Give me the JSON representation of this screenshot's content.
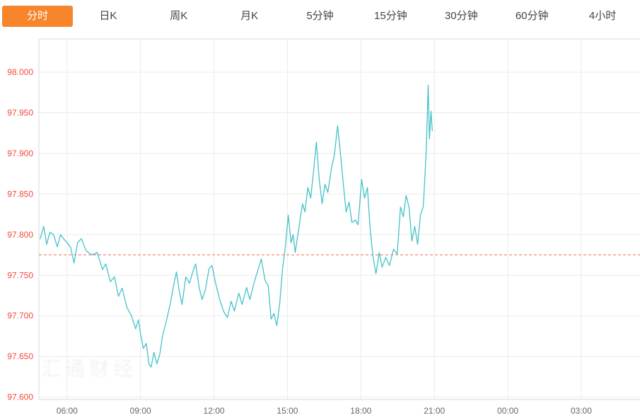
{
  "tabs": [
    {
      "label": "分时",
      "active": true
    },
    {
      "label": "日K",
      "active": false
    },
    {
      "label": "周K",
      "active": false
    },
    {
      "label": "月K",
      "active": false
    },
    {
      "label": "5分钟",
      "active": false
    },
    {
      "label": "15分钟",
      "active": false
    },
    {
      "label": "30分钟",
      "active": false
    },
    {
      "label": "60分钟",
      "active": false
    },
    {
      "label": "4小时",
      "active": false
    }
  ],
  "watermark": "汇通财经",
  "chart_data": {
    "type": "line",
    "title": "",
    "xlabel": "",
    "ylabel": "",
    "legend": "none",
    "grid": true,
    "colors": {
      "line": "#45c2c8",
      "grid": "#ebebeb",
      "border": "#d9d9d9",
      "y_labels": "#f04b3e",
      "x_labels": "#666666",
      "active_tab": "#f7852c"
    },
    "reference_line": {
      "value": 97.775,
      "color": "#f4705c",
      "style": "dashed"
    },
    "y_tick_values": [
      98.0,
      97.95,
      97.9,
      97.85,
      97.8,
      97.75,
      97.7,
      97.65,
      97.6
    ],
    "y_tick_labels": [
      "98.000",
      "97.950",
      "97.900",
      "97.850",
      "97.800",
      "97.750",
      "97.700",
      "97.650",
      "97.600"
    ],
    "x_tick_minutes": [
      0,
      180,
      360,
      540,
      720,
      900,
      1080,
      1260
    ],
    "x_tick_labels": [
      "06:00",
      "09:00",
      "12:00",
      "15:00",
      "18:00",
      "21:00",
      "00:00",
      "03:00"
    ],
    "x_domain_minutes": [
      -69,
      1404
    ],
    "y_domain": [
      97.597,
      98.041
    ],
    "ylim": [
      97.6,
      98.0
    ],
    "series": [
      {
        "name": "price",
        "points": [
          [
            -66,
            97.795
          ],
          [
            -57,
            97.81
          ],
          [
            -50,
            97.788
          ],
          [
            -42,
            97.803
          ],
          [
            -33,
            97.8
          ],
          [
            -24,
            97.785
          ],
          [
            -16,
            97.8
          ],
          [
            -7,
            97.794
          ],
          [
            0,
            97.79
          ],
          [
            9,
            97.784
          ],
          [
            17,
            97.765
          ],
          [
            26,
            97.79
          ],
          [
            35,
            97.795
          ],
          [
            47,
            97.78
          ],
          [
            61,
            97.775
          ],
          [
            74,
            97.778
          ],
          [
            87,
            97.757
          ],
          [
            95,
            97.764
          ],
          [
            106,
            97.742
          ],
          [
            116,
            97.748
          ],
          [
            126,
            97.724
          ],
          [
            135,
            97.734
          ],
          [
            147,
            97.71
          ],
          [
            158,
            97.7
          ],
          [
            168,
            97.684
          ],
          [
            175,
            97.695
          ],
          [
            180,
            97.678
          ],
          [
            187,
            97.66
          ],
          [
            194,
            97.666
          ],
          [
            201,
            97.64
          ],
          [
            206,
            97.637
          ],
          [
            213,
            97.655
          ],
          [
            220,
            97.641
          ],
          [
            227,
            97.652
          ],
          [
            234,
            97.675
          ],
          [
            244,
            97.695
          ],
          [
            253,
            97.715
          ],
          [
            262,
            97.74
          ],
          [
            268,
            97.754
          ],
          [
            275,
            97.73
          ],
          [
            282,
            97.714
          ],
          [
            291,
            97.748
          ],
          [
            300,
            97.74
          ],
          [
            308,
            97.754
          ],
          [
            315,
            97.764
          ],
          [
            324,
            97.734
          ],
          [
            331,
            97.72
          ],
          [
            339,
            97.732
          ],
          [
            348,
            97.758
          ],
          [
            355,
            97.762
          ],
          [
            364,
            97.74
          ],
          [
            374,
            97.72
          ],
          [
            384,
            97.705
          ],
          [
            393,
            97.698
          ],
          [
            402,
            97.718
          ],
          [
            410,
            97.706
          ],
          [
            421,
            97.728
          ],
          [
            429,
            97.714
          ],
          [
            440,
            97.735
          ],
          [
            448,
            97.72
          ],
          [
            459,
            97.742
          ],
          [
            468,
            97.757
          ],
          [
            476,
            97.77
          ],
          [
            485,
            97.744
          ],
          [
            493,
            97.737
          ],
          [
            500,
            97.696
          ],
          [
            507,
            97.703
          ],
          [
            514,
            97.688
          ],
          [
            521,
            97.715
          ],
          [
            528,
            97.758
          ],
          [
            535,
            97.785
          ],
          [
            542,
            97.824
          ],
          [
            549,
            97.79
          ],
          [
            554,
            97.8
          ],
          [
            559,
            97.778
          ],
          [
            568,
            97.808
          ],
          [
            577,
            97.838
          ],
          [
            583,
            97.828
          ],
          [
            590,
            97.858
          ],
          [
            597,
            97.845
          ],
          [
            604,
            97.878
          ],
          [
            611,
            97.914
          ],
          [
            618,
            97.868
          ],
          [
            625,
            97.838
          ],
          [
            632,
            97.862
          ],
          [
            639,
            97.852
          ],
          [
            648,
            97.882
          ],
          [
            655,
            97.898
          ],
          [
            663,
            97.934
          ],
          [
            670,
            97.9
          ],
          [
            677,
            97.862
          ],
          [
            684,
            97.828
          ],
          [
            691,
            97.84
          ],
          [
            698,
            97.815
          ],
          [
            707,
            97.818
          ],
          [
            713,
            97.812
          ],
          [
            722,
            97.868
          ],
          [
            729,
            97.845
          ],
          [
            736,
            97.858
          ],
          [
            743,
            97.805
          ],
          [
            750,
            97.772
          ],
          [
            757,
            97.752
          ],
          [
            765,
            97.778
          ],
          [
            772,
            97.76
          ],
          [
            781,
            97.772
          ],
          [
            790,
            97.762
          ],
          [
            800,
            97.782
          ],
          [
            809,
            97.776
          ],
          [
            817,
            97.834
          ],
          [
            824,
            97.822
          ],
          [
            831,
            97.848
          ],
          [
            838,
            97.834
          ],
          [
            845,
            97.792
          ],
          [
            852,
            97.81
          ],
          [
            859,
            97.788
          ],
          [
            866,
            97.824
          ],
          [
            873,
            97.835
          ],
          [
            880,
            97.9
          ],
          [
            885,
            97.984
          ],
          [
            888,
            97.918
          ],
          [
            892,
            97.952
          ],
          [
            895,
            97.928
          ]
        ]
      }
    ]
  }
}
